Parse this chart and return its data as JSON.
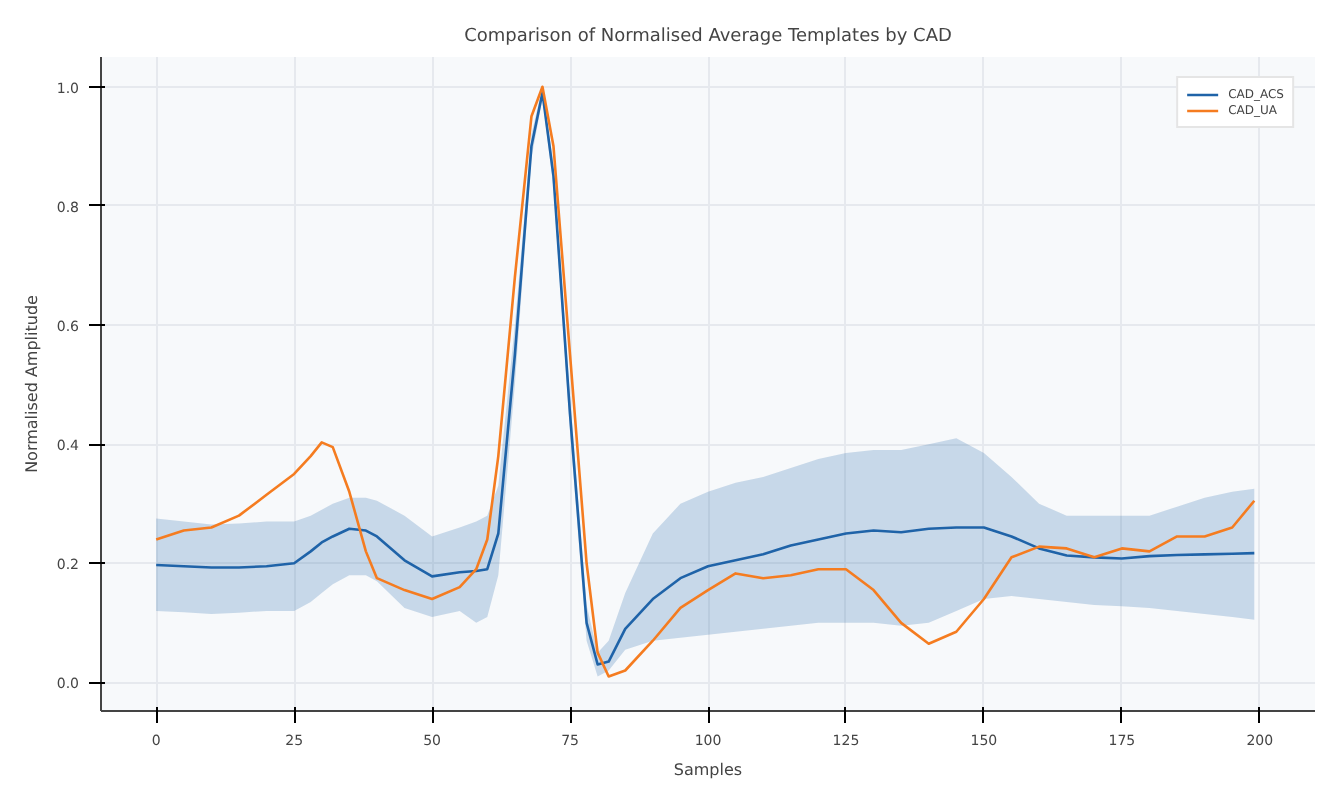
{
  "chart_data": {
    "type": "line",
    "title": "Comparison of Normalised Average Templates by CAD",
    "xlabel": "Samples",
    "ylabel": "Normalised Amplitude",
    "x": [
      0,
      5,
      10,
      15,
      20,
      25,
      28,
      30,
      32,
      35,
      38,
      40,
      45,
      50,
      55,
      58,
      60,
      62,
      65,
      68,
      70,
      72,
      75,
      78,
      80,
      82,
      85,
      90,
      95,
      100,
      105,
      110,
      115,
      120,
      125,
      130,
      135,
      140,
      145,
      150,
      155,
      160,
      165,
      170,
      175,
      180,
      185,
      190,
      195,
      199
    ],
    "series": [
      {
        "name": "CAD_ACS",
        "color": "#1f63a8",
        "values": [
          0.197,
          0.195,
          0.193,
          0.193,
          0.195,
          0.2,
          0.22,
          0.235,
          0.245,
          0.258,
          0.255,
          0.245,
          0.205,
          0.178,
          0.185,
          0.187,
          0.19,
          0.25,
          0.55,
          0.9,
          0.99,
          0.85,
          0.45,
          0.1,
          0.03,
          0.035,
          0.09,
          0.14,
          0.175,
          0.195,
          0.205,
          0.215,
          0.23,
          0.24,
          0.25,
          0.255,
          0.252,
          0.258,
          0.26,
          0.26,
          0.245,
          0.225,
          0.213,
          0.21,
          0.208,
          0.212,
          0.214,
          0.215,
          0.216,
          0.217
        ],
        "upper": [
          0.275,
          0.27,
          0.265,
          0.267,
          0.27,
          0.27,
          0.28,
          0.29,
          0.3,
          0.31,
          0.31,
          0.305,
          0.28,
          0.245,
          0.26,
          0.27,
          0.28,
          0.33,
          0.6,
          0.92,
          1.0,
          0.87,
          0.48,
          0.13,
          0.05,
          0.07,
          0.15,
          0.25,
          0.3,
          0.32,
          0.335,
          0.345,
          0.36,
          0.375,
          0.385,
          0.39,
          0.39,
          0.4,
          0.41,
          0.385,
          0.345,
          0.3,
          0.28,
          0.28,
          0.28,
          0.28,
          0.295,
          0.31,
          0.32,
          0.325
        ],
        "lower": [
          0.12,
          0.118,
          0.115,
          0.117,
          0.12,
          0.12,
          0.135,
          0.15,
          0.165,
          0.18,
          0.18,
          0.17,
          0.125,
          0.11,
          0.12,
          0.1,
          0.11,
          0.18,
          0.5,
          0.88,
          0.98,
          0.83,
          0.42,
          0.07,
          0.01,
          0.02,
          0.055,
          0.07,
          0.075,
          0.08,
          0.085,
          0.09,
          0.095,
          0.1,
          0.1,
          0.1,
          0.095,
          0.1,
          0.12,
          0.14,
          0.145,
          0.14,
          0.135,
          0.13,
          0.128,
          0.125,
          0.12,
          0.115,
          0.11,
          0.105
        ]
      },
      {
        "name": "CAD_UA",
        "color": "#f57c20",
        "values": [
          0.24,
          0.255,
          0.26,
          0.28,
          0.315,
          0.35,
          0.38,
          0.403,
          0.395,
          0.32,
          0.22,
          0.175,
          0.155,
          0.14,
          0.16,
          0.19,
          0.24,
          0.38,
          0.68,
          0.95,
          1.0,
          0.9,
          0.55,
          0.2,
          0.05,
          0.01,
          0.02,
          0.07,
          0.125,
          0.155,
          0.183,
          0.175,
          0.18,
          0.19,
          0.19,
          0.155,
          0.1,
          0.065,
          0.085,
          0.14,
          0.21,
          0.228,
          0.225,
          0.21,
          0.225,
          0.22,
          0.245,
          0.245,
          0.26,
          0.305
        ]
      }
    ],
    "xlim": [
      -10,
      210
    ],
    "xticks": [
      0,
      25,
      50,
      75,
      100,
      125,
      150,
      175,
      200
    ],
    "ylim": [
      -0.048,
      1.05
    ],
    "yticks": [
      {
        "value": 0,
        "label": "0.0"
      },
      {
        "value": 0.2,
        "label": "0.2"
      },
      {
        "value": 0.4,
        "label": "0.4"
      },
      {
        "value": 0.6,
        "label": "0.6"
      },
      {
        "value": 0.8,
        "label": "0.8"
      },
      {
        "value": 1.0,
        "label": "1.0"
      }
    ],
    "grid": true,
    "legend": "top right",
    "line_style": "solid"
  }
}
